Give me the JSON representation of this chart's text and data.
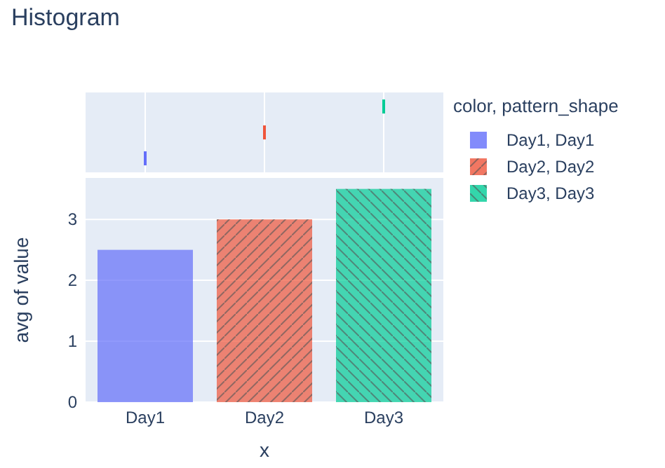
{
  "chart_data": {
    "type": "bar",
    "title": "Histogram",
    "xlabel": "x",
    "ylabel": "avg of value",
    "legend_title": "color, pattern_shape",
    "categories": [
      "Day1",
      "Day2",
      "Day3"
    ],
    "series": [
      {
        "name": "Day1, Day1",
        "color": "#636efa",
        "values": [
          2.5,
          null,
          null
        ]
      },
      {
        "name": "Day2, Day2",
        "color": "#ef553b",
        "values": [
          null,
          3,
          null
        ]
      },
      {
        "name": "Day3, Day3",
        "color": "#00cc96",
        "values": [
          null,
          null,
          3.5
        ]
      }
    ],
    "ylim": [
      0,
      3.68
    ],
    "yticks": [
      0,
      1,
      2,
      3
    ],
    "grid": "y",
    "legend": "top right"
  }
}
